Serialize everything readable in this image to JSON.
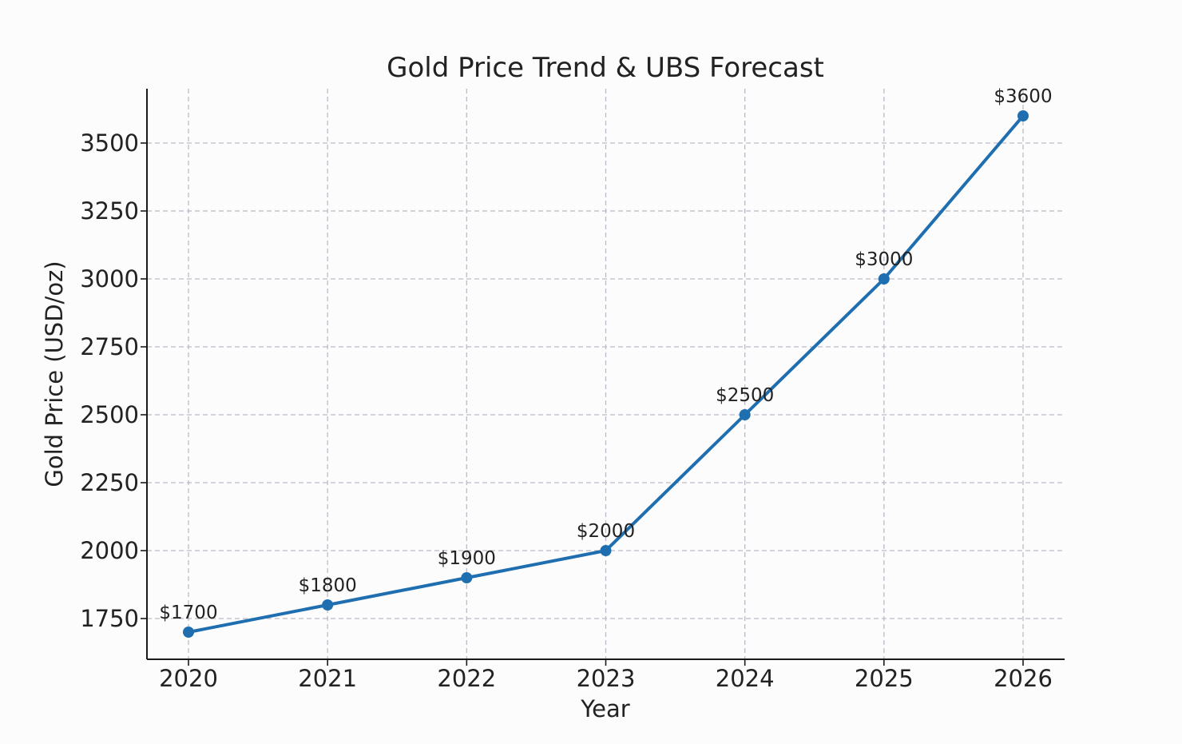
{
  "chart_data": {
    "type": "line",
    "title": "Gold Price Trend & UBS Forecast",
    "xlabel": "Year",
    "ylabel": "Gold Price (USD/oz)",
    "x": [
      "2020",
      "2021",
      "2022",
      "2023",
      "2024",
      "2025",
      "2026"
    ],
    "series": [
      {
        "name": "Gold Price",
        "values": [
          1700,
          1800,
          1900,
          2000,
          2500,
          3000,
          3600
        ],
        "data_labels": [
          "$1700",
          "$1800",
          "$1900",
          "$2000",
          "$2500",
          "$3000",
          "$3600"
        ],
        "color": "#1f6fb0"
      }
    ],
    "ylim": [
      1600,
      3700
    ],
    "yticks": [
      1750,
      2000,
      2250,
      2500,
      2750,
      3000,
      3250,
      3500
    ],
    "ytick_labels": [
      "1750",
      "2000",
      "2250",
      "2500",
      "2750",
      "3000",
      "3250",
      "3500"
    ],
    "grid": true,
    "grid_color": "#c0b8c8",
    "axis_color": "#1a1a1a",
    "text_color": "#222222"
  }
}
